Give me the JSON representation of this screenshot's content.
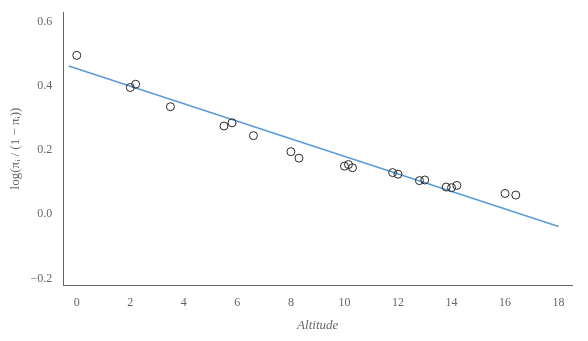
{
  "chart_data": {
    "type": "scatter",
    "x_label": "Altitude",
    "y_label": "log(πᵢ / (1 − πᵢ))",
    "series": [
      {
        "type": "scatter",
        "marker": "open circle",
        "color": "#2a2a2a",
        "x": [
          0.0,
          2.0,
          2.2,
          3.5,
          5.5,
          5.8,
          6.6,
          8.0,
          8.3,
          10.0,
          10.15,
          10.3,
          11.8,
          12.0,
          12.8,
          13.0,
          13.8,
          14.0,
          14.2,
          16.0,
          16.4
        ],
        "values": [
          0.495,
          0.395,
          0.405,
          0.335,
          0.275,
          0.285,
          0.245,
          0.195,
          0.175,
          0.15,
          0.155,
          0.145,
          0.13,
          0.125,
          0.105,
          0.107,
          0.085,
          0.083,
          0.09,
          0.065,
          0.06
        ]
      },
      {
        "type": "line",
        "line_style": "solid",
        "color": "#5b9bd5",
        "x": [
          -0.3,
          18.0
        ],
        "values": [
          0.462,
          -0.038
        ]
      }
    ],
    "xlim": [
      -0.5,
      18.5
    ],
    "ylim": [
      -0.22,
      0.63
    ],
    "xticks": [
      0,
      2,
      4,
      6,
      8,
      10,
      12,
      14,
      16,
      18
    ],
    "yticks": [
      {
        "value": -0.2,
        "label": "−0.2"
      },
      {
        "value": 0,
        "label": "0.0"
      },
      0.2,
      0.4,
      0.6
    ],
    "grid": false
  }
}
